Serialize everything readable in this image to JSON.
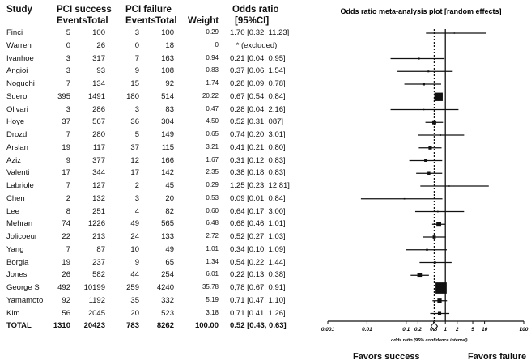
{
  "headers": {
    "study": "Study",
    "success": "PCI success",
    "failure": "PCI failure",
    "events": "Events",
    "total": "Total",
    "weight": "Weight",
    "or": "Odds ratio",
    "ci": "[95%CI]"
  },
  "chart_data": {
    "type": "forest",
    "title": "Odds ratio meta-analysis plot [random effects]",
    "xlabel": "odds ratio (95% confidence interval)",
    "xscale": "log",
    "xlim": [
      0.001,
      100
    ],
    "xticks": [
      0.001,
      0.01,
      0.1,
      0.2,
      0.5,
      1,
      2,
      5,
      10,
      100
    ],
    "xtick_labels": [
      "0.001",
      "0.01",
      "0.1",
      "0.2",
      "0.5",
      "1",
      "2",
      "5",
      "10",
      "100"
    ],
    "reference_line": 1,
    "pooled_line": 0.52,
    "favors_left": "Favors  success",
    "favors_right": "Favors  failure",
    "studies": [
      {
        "name": "Finci",
        "se": "5",
        "st": "100",
        "fe": "3",
        "ft": "100",
        "weight": "0.29",
        "or_text": "1.70 [0.32, 11.23]",
        "or": 1.7,
        "lo": 0.32,
        "hi": 11.23
      },
      {
        "name": "Warren",
        "se": "0",
        "st": "26",
        "fe": "0",
        "ft": "18",
        "weight": "0",
        "or_text": "* (excluded)",
        "or": null,
        "lo": null,
        "hi": null
      },
      {
        "name": "Ivanhoe",
        "se": "3",
        "st": "317",
        "fe": "7",
        "ft": "163",
        "weight": "0.94",
        "or_text": "0.21 [0.04, 0.95]",
        "or": 0.21,
        "lo": 0.04,
        "hi": 0.95
      },
      {
        "name": "Angioi",
        "se": "3",
        "st": "93",
        "fe": "9",
        "ft": "108",
        "weight": "0.83",
        "or_text": "0.37 [0.06, 1.54]",
        "or": 0.37,
        "lo": 0.06,
        "hi": 1.54
      },
      {
        "name": "Noguchi",
        "se": "7",
        "st": "134",
        "fe": "15",
        "ft": "92",
        "weight": "1.74",
        "or_text": "0.28 [0.09, 0.78]",
        "or": 0.28,
        "lo": 0.09,
        "hi": 0.78
      },
      {
        "name": "Suero",
        "se": "395",
        "st": "1491",
        "fe": "180",
        "ft": "514",
        "weight": "20.22",
        "or_text": "0.67 [0.54, 0.84]",
        "or": 0.67,
        "lo": 0.54,
        "hi": 0.84
      },
      {
        "name": "Olivari",
        "se": "3",
        "st": "286",
        "fe": "3",
        "ft": "83",
        "weight": "0.47",
        "or_text": "0.28 [0.04, 2.16]",
        "or": 0.28,
        "lo": 0.04,
        "hi": 2.16
      },
      {
        "name": "Hoye",
        "se": "37",
        "st": "567",
        "fe": "36",
        "ft": "304",
        "weight": "4.50",
        "or_text": "0.52 [0.31, 087]",
        "or": 0.52,
        "lo": 0.31,
        "hi": 0.87
      },
      {
        "name": "Drozd",
        "se": "7",
        "st": "280",
        "fe": "5",
        "ft": "149",
        "weight": "0.65",
        "or_text": "0.74 [0.20, 3.01]",
        "or": 0.74,
        "lo": 0.2,
        "hi": 3.01
      },
      {
        "name": "Arslan",
        "se": "19",
        "st": "117",
        "fe": "37",
        "ft": "115",
        "weight": "3.21",
        "or_text": "0.41 [0.21, 0.80]",
        "or": 0.41,
        "lo": 0.21,
        "hi": 0.8
      },
      {
        "name": "Aziz",
        "se": "9",
        "st": "377",
        "fe": "12",
        "ft": "166",
        "weight": "1.67",
        "or_text": "0.31 [0.12, 0.83]",
        "or": 0.31,
        "lo": 0.12,
        "hi": 0.83
      },
      {
        "name": "Valenti",
        "se": "17",
        "st": "344",
        "fe": "17",
        "ft": "142",
        "weight": "2.35",
        "or_text": "0.38 [0.18, 0.83]",
        "or": 0.38,
        "lo": 0.18,
        "hi": 0.83
      },
      {
        "name": "Labriole",
        "se": "7",
        "st": "127",
        "fe": "2",
        "ft": "45",
        "weight": "0.29",
        "or_text": "1.25 [0.23, 12.81]",
        "or": 1.25,
        "lo": 0.23,
        "hi": 12.81
      },
      {
        "name": "Chen",
        "se": "2",
        "st": "132",
        "fe": "3",
        "ft": "20",
        "weight": "0.53",
        "or_text": "0.09 [0.01, 0.84]",
        "or": 0.09,
        "lo": 0.007,
        "hi": 0.84
      },
      {
        "name": "Lee",
        "se": "8",
        "st": "251",
        "fe": "4",
        "ft": "82",
        "weight": "0.60",
        "or_text": "0.64 [0.17, 3.00]",
        "or": 0.64,
        "lo": 0.17,
        "hi": 3.0
      },
      {
        "name": "Mehran",
        "se": "74",
        "st": "1226",
        "fe": "49",
        "ft": "565",
        "weight": "6.48",
        "or_text": "0.68 [0.46, 1.01]",
        "or": 0.68,
        "lo": 0.46,
        "hi": 1.01
      },
      {
        "name": "Jolicoeur",
        "se": "22",
        "st": "213",
        "fe": "24",
        "ft": "133",
        "weight": "2.72",
        "or_text": "0.52 [0.27,  1.03]",
        "or": 0.52,
        "lo": 0.27,
        "hi": 1.03
      },
      {
        "name": "Yang",
        "se": "7",
        "st": "87",
        "fe": "10",
        "ft": "49",
        "weight": "1.01",
        "or_text": "0.34 [0.10,  1.09]",
        "or": 0.34,
        "lo": 0.1,
        "hi": 1.09
      },
      {
        "name": "Borgia",
        "se": "19",
        "st": "237",
        "fe": "9",
        "ft": "65",
        "weight": "1.34",
        "or_text": "0.54 [0.22, 1.44]",
        "or": 0.54,
        "lo": 0.22,
        "hi": 1.44
      },
      {
        "name": "Jones",
        "se": "26",
        "st": "582",
        "fe": "44",
        "ft": "254",
        "weight": "6.01",
        "or_text": "0.22 [0.13, 0.38]",
        "or": 0.22,
        "lo": 0.13,
        "hi": 0.38
      },
      {
        "name": "George S",
        "se": "492",
        "st": "10199",
        "fe": "259",
        "ft": "4240",
        "weight": "35.78",
        "or_text": "0,78 [0.67, 0.91]",
        "or": 0.78,
        "lo": 0.67,
        "hi": 0.91
      },
      {
        "name": "Yamamoto",
        "se": "92",
        "st": "1192",
        "fe": "35",
        "ft": "332",
        "weight": "5.19",
        "or_text": "0.71 [0.47, 1.10]",
        "or": 0.71,
        "lo": 0.47,
        "hi": 1.1
      },
      {
        "name": "Kim",
        "se": "56",
        "st": "2045",
        "fe": "20",
        "ft": "523",
        "weight": "3.18",
        "or_text": "0.71 [0.41, 1.26]",
        "or": 0.71,
        "lo": 0.41,
        "hi": 1.26
      }
    ],
    "total": {
      "name": "TOTAL",
      "se": "1310",
      "st": "20423",
      "fe": "783",
      "ft": "8262",
      "weight": "100.00",
      "or_text": "0.52 [0.43, 0.63]",
      "or": 0.52,
      "lo": 0.43,
      "hi": 0.63
    }
  }
}
